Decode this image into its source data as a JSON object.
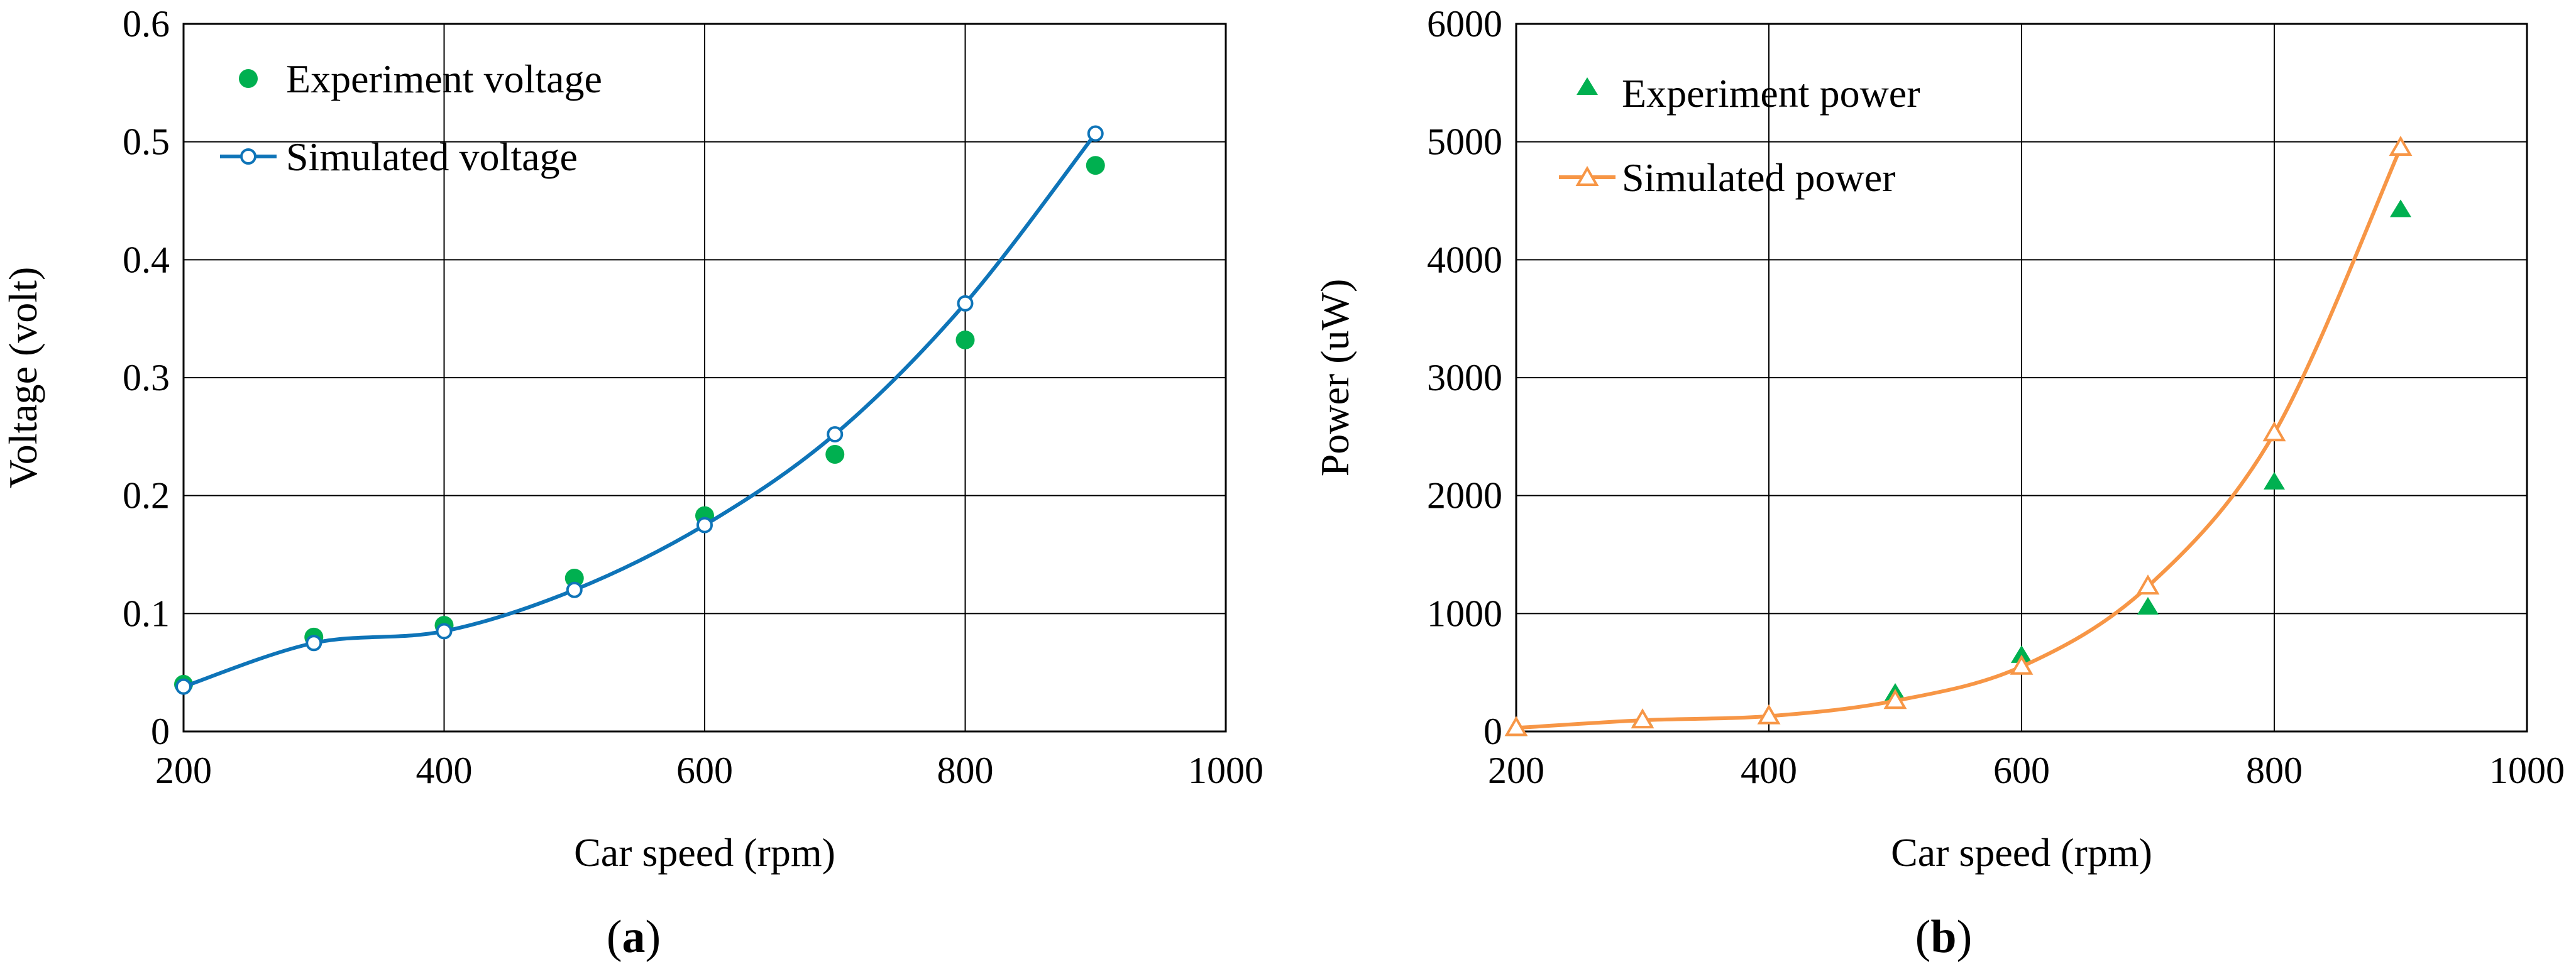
{
  "chart_data": [
    {
      "type": "line",
      "panel_label": {
        "open": "(",
        "letter": "a",
        "close": ")"
      },
      "title": "",
      "xlabel": "Car speed (rpm)",
      "ylabel": "Voltage (volt)",
      "xlim": [
        200,
        1000
      ],
      "ylim": [
        0,
        0.6
      ],
      "xticks": [
        200,
        400,
        600,
        800,
        1000
      ],
      "xtick_labels": [
        "200",
        "400",
        "600",
        "800",
        "1000"
      ],
      "yticks": [
        0,
        0.1,
        0.2,
        0.3,
        0.4,
        0.5,
        0.6
      ],
      "ytick_labels": [
        "0",
        "0.1",
        "0.2",
        "0.3",
        "0.4",
        "0.5",
        "0.6"
      ],
      "grid": true,
      "legend_position": "top-left",
      "series": [
        {
          "name": "Experiment voltage",
          "style": "markers",
          "marker": "circle",
          "color": "#00B050",
          "x": [
            200,
            300,
            400,
            500,
            600,
            700,
            800,
            900
          ],
          "values": [
            0.04,
            0.08,
            0.09,
            0.13,
            0.183,
            0.235,
            0.332,
            0.48
          ]
        },
        {
          "name": "Simulated voltage",
          "style": "line",
          "marker": "open-circle",
          "color": "#0E74B8",
          "x": [
            200,
            300,
            400,
            500,
            600,
            700,
            800,
            900
          ],
          "values": [
            0.038,
            0.075,
            0.085,
            0.12,
            0.175,
            0.252,
            0.363,
            0.507
          ]
        }
      ]
    },
    {
      "type": "line",
      "panel_label": {
        "open": "(",
        "letter": "b",
        "close": ")"
      },
      "title": "",
      "xlabel": "Car speed (rpm)",
      "ylabel": "Power (uW)",
      "xlim": [
        200,
        1000
      ],
      "ylim": [
        0,
        6000
      ],
      "xticks": [
        200,
        400,
        600,
        800,
        1000
      ],
      "xtick_labels": [
        "200",
        "400",
        "600",
        "800",
        "1000"
      ],
      "yticks": [
        0,
        1000,
        2000,
        3000,
        4000,
        5000,
        6000
      ],
      "ytick_labels": [
        "0",
        "1000",
        "2000",
        "3000",
        "4000",
        "5000",
        "6000"
      ],
      "grid": true,
      "legend_position": "top-left",
      "series": [
        {
          "name": "Experiment power",
          "style": "markers",
          "marker": "triangle",
          "color": "#00B050",
          "x": [
            200,
            300,
            400,
            500,
            600,
            700,
            800,
            900
          ],
          "values": [
            20,
            100,
            130,
            320,
            640,
            1050,
            2110,
            4420
          ]
        },
        {
          "name": "Simulated power",
          "style": "line",
          "marker": "open-triangle",
          "color": "#F79646",
          "x": [
            200,
            300,
            400,
            500,
            600,
            700,
            800,
            900
          ],
          "values": [
            30,
            95,
            130,
            260,
            550,
            1230,
            2530,
            4950
          ]
        }
      ]
    }
  ]
}
